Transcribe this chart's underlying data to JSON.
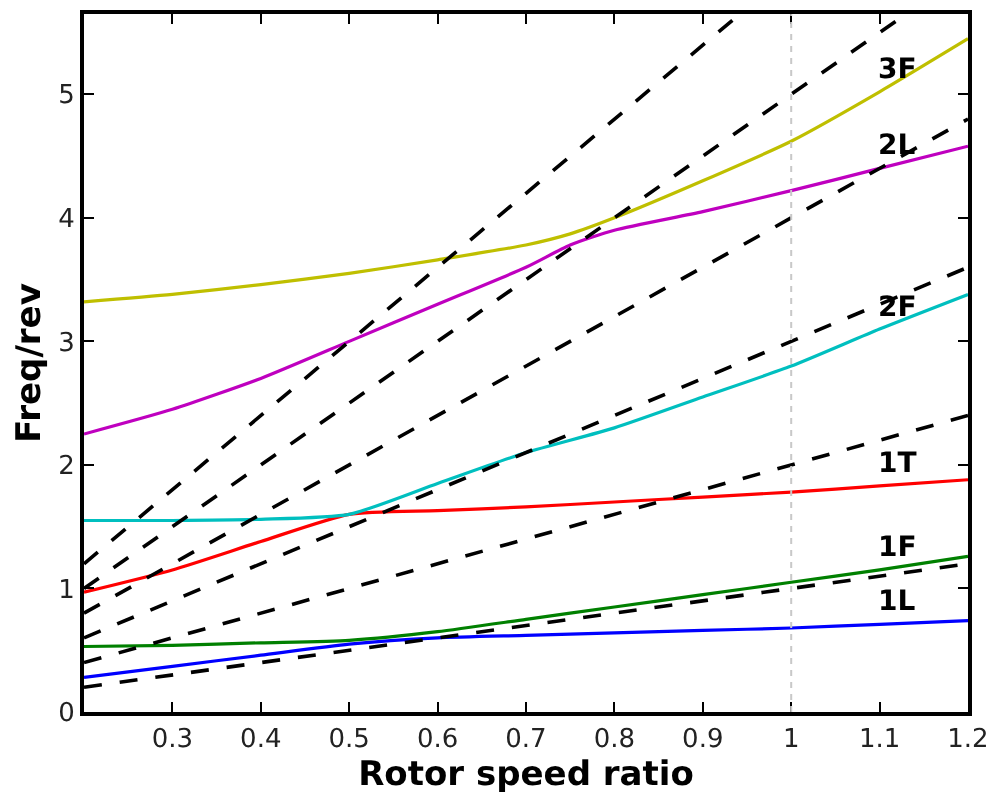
{
  "chart_data": {
    "type": "line",
    "xlabel": "Rotor speed ratio",
    "ylabel": "Freq/rev",
    "x": [
      0.2,
      0.3,
      0.4,
      0.5,
      0.6,
      0.7,
      0.8,
      0.9,
      1.0,
      1.1,
      1.2
    ],
    "series": [
      {
        "name": "1L",
        "color": "#0000ff",
        "values": [
          0.28,
          0.37,
          0.46,
          0.55,
          0.6,
          0.62,
          0.64,
          0.66,
          0.68,
          0.71,
          0.74
        ]
      },
      {
        "name": "1F",
        "color": "#008000",
        "values": [
          0.53,
          0.54,
          0.56,
          0.58,
          0.65,
          0.75,
          0.85,
          0.95,
          1.05,
          1.15,
          1.26
        ]
      },
      {
        "name": "1T",
        "color": "#ff0000",
        "values": [
          0.97,
          1.15,
          1.38,
          1.6,
          1.63,
          1.66,
          1.7,
          1.74,
          1.78,
          1.83,
          1.88
        ]
      },
      {
        "name": "2F",
        "color": "#00bfbf",
        "values": [
          1.55,
          1.55,
          1.56,
          1.6,
          1.85,
          2.1,
          2.3,
          2.55,
          2.8,
          3.1,
          3.38
        ]
      },
      {
        "name": "2L",
        "color": "#bf00bf",
        "x": [
          0.2,
          0.3,
          0.4,
          0.5,
          0.6,
          0.7,
          0.75,
          0.8,
          0.9,
          1.0,
          1.1,
          1.2
        ],
        "values": [
          2.25,
          2.45,
          2.7,
          3.0,
          3.3,
          3.6,
          3.78,
          3.9,
          4.05,
          4.22,
          4.4,
          4.58
        ]
      },
      {
        "name": "3F",
        "color": "#bfbf00",
        "x": [
          0.2,
          0.3,
          0.4,
          0.5,
          0.6,
          0.7,
          0.75,
          0.8,
          0.9,
          1.0,
          1.1,
          1.2
        ],
        "values": [
          3.32,
          3.38,
          3.46,
          3.55,
          3.66,
          3.78,
          3.87,
          4.0,
          4.3,
          4.62,
          5.02,
          5.45
        ]
      },
      {
        "color": "#000000",
        "line_style": "dashed",
        "x": [
          0.2,
          1.2
        ],
        "values": [
          0.2,
          1.2
        ]
      },
      {
        "color": "#000000",
        "line_style": "dashed",
        "x": [
          0.2,
          1.2
        ],
        "values": [
          0.4,
          2.4
        ]
      },
      {
        "color": "#000000",
        "line_style": "dashed",
        "x": [
          0.2,
          1.2
        ],
        "values": [
          0.6,
          3.6
        ]
      },
      {
        "color": "#000000",
        "line_style": "dashed",
        "x": [
          0.2,
          1.2
        ],
        "values": [
          0.8,
          4.8
        ]
      },
      {
        "color": "#000000",
        "line_style": "dashed",
        "x": [
          0.2,
          1.13
        ],
        "values": [
          1.0,
          5.65
        ]
      },
      {
        "color": "#000000",
        "line_style": "dashed",
        "x": [
          0.2,
          0.942
        ],
        "values": [
          1.2,
          5.65
        ]
      }
    ],
    "xlim": [
      0.2,
      1.2
    ],
    "ylim": [
      0,
      5.65
    ],
    "xticks": [
      0.3,
      0.4,
      0.5,
      0.6,
      0.7,
      0.8,
      0.9,
      1,
      1.1,
      1.2
    ],
    "yticks": [
      0,
      1,
      2,
      3,
      4,
      5
    ],
    "ref_lines": [
      {
        "axis": "x",
        "value": 1,
        "color": "#c8c8c8",
        "line_style": "dotted"
      }
    ],
    "line_style": "solid",
    "marker": "none",
    "legend": false
  }
}
